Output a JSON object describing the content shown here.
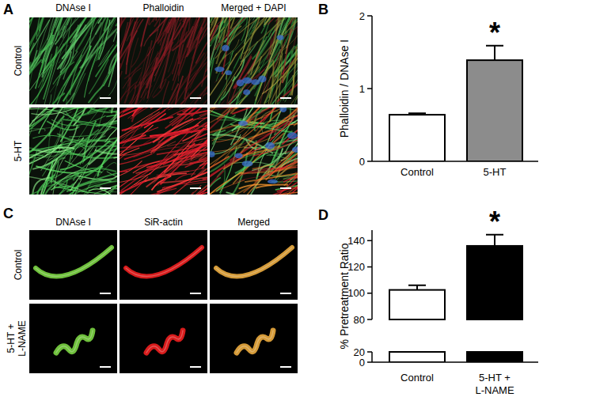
{
  "image_panels": [
    {
      "label": "A",
      "columns": [
        "DNAse I",
        "Phalloidin",
        "Merged + DAPI"
      ],
      "rows": [
        "Control",
        "5-HT"
      ]
    },
    {
      "label": "C",
      "columns": [
        "DNAse I",
        "SiR-actin",
        "Merged"
      ],
      "rows": [
        "Control",
        "5-HT + L-NAME"
      ]
    }
  ],
  "chart_data": [
    {
      "type": "bar",
      "title": "B",
      "y_label": "Phalloidin / DNAse I",
      "categories": [
        "Control",
        "5-HT"
      ],
      "values": [
        0.64,
        1.39
      ],
      "errors": [
        0.02,
        0.2
      ],
      "colors": [
        "#ffffff",
        "#8c8c8c"
      ],
      "ylim": [
        0,
        2
      ],
      "yticks": [
        0,
        1,
        2
      ],
      "annotations": [
        {
          "text": "*",
          "category": "5-HT"
        }
      ]
    },
    {
      "type": "bar",
      "title": "D",
      "y_label": "% Pretreatment Ratio",
      "categories": [
        "Control",
        "5-HT + L-NAME"
      ],
      "values": [
        102.5,
        136
      ],
      "errors": [
        3.5,
        8.5
      ],
      "colors": [
        "#ffffff",
        "#000000"
      ],
      "ylim": [
        0,
        148
      ],
      "ybreak": [
        20,
        80
      ],
      "yticks": [
        0,
        20,
        80,
        100,
        120,
        140
      ],
      "annotations": [
        {
          "text": "*",
          "category": "5-HT + L-NAME"
        }
      ]
    }
  ]
}
